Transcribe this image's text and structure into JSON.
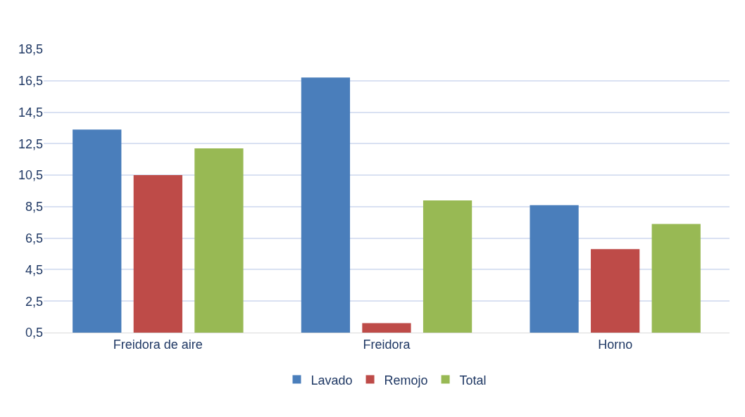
{
  "chart_data": {
    "type": "bar",
    "categories": [
      "Freidora de aire",
      "Freidora",
      "Horno"
    ],
    "series": [
      {
        "name": "Lavado",
        "color": "#4a7ebb",
        "values": [
          13.4,
          16.7,
          8.6
        ]
      },
      {
        "name": "Remojo",
        "color": "#be4b48",
        "values": [
          10.5,
          1.1,
          5.8
        ]
      },
      {
        "name": "Total",
        "color": "#98b954",
        "values": [
          12.2,
          8.9,
          7.4
        ]
      }
    ],
    "ylim": [
      0.5,
      18.5
    ],
    "yticks": [
      {
        "value": 0.5,
        "label": "0,5"
      },
      {
        "value": 2.5,
        "label": "2,5"
      },
      {
        "value": 4.5,
        "label": "4,5"
      },
      {
        "value": 6.5,
        "label": "6,5"
      },
      {
        "value": 8.5,
        "label": "8,5"
      },
      {
        "value": 10.5,
        "label": "10,5"
      },
      {
        "value": 12.5,
        "label": "12,5"
      },
      {
        "value": 14.5,
        "label": "14,5"
      },
      {
        "value": 16.5,
        "label": "16,5"
      },
      {
        "value": 18.5,
        "label": "18,5"
      }
    ],
    "grid": "y",
    "legend": "bottom"
  }
}
